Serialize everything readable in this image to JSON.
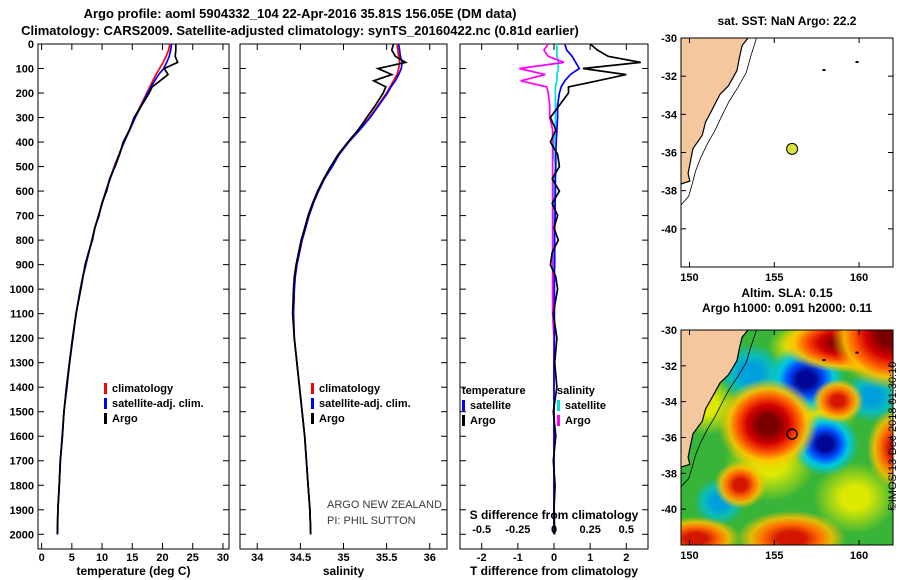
{
  "titles": {
    "line1": "Argo profile: aoml 5904332_104 22-Apr-2016 35.81S 156.05E (DM data)",
    "line2": "Climatology: CARS2009. Satellite-adjusted climatology: synTS_20160422.nc (0.81d earlier)"
  },
  "watermark": {
    "org": "ARGO NEW ZEALAND",
    "pi": "PI: PHIL SUTTON"
  },
  "copyright": "©IMOS 13-Dec-2018 01:30:10",
  "chart_data": {
    "type": "line",
    "depth_m": [
      0,
      25,
      50,
      75,
      100,
      125,
      150,
      175,
      200,
      250,
      300,
      350,
      400,
      450,
      500,
      550,
      600,
      650,
      700,
      750,
      800,
      850,
      900,
      950,
      1000,
      1100,
      1200,
      1300,
      1400,
      1500,
      1600,
      1700,
      1800,
      1900,
      2000
    ],
    "depth_axis": {
      "ticks": [
        0,
        100,
        200,
        300,
        400,
        500,
        600,
        700,
        800,
        900,
        1000,
        1100,
        1200,
        1300,
        1400,
        1500,
        1600,
        1700,
        1800,
        1900,
        2000
      ],
      "range": [
        0,
        2060
      ]
    },
    "temperature_panel": {
      "type": "line",
      "xlabel": "temperature (deg C)",
      "xticks": [
        0,
        5,
        10,
        15,
        20,
        25,
        30
      ],
      "xrange": [
        -0.6,
        31
      ],
      "series": [
        {
          "name": "climatology",
          "color": "#ff0000",
          "values": [
            21.2,
            21.0,
            20.6,
            20.1,
            19.5,
            18.9,
            18.4,
            17.9,
            17.4,
            16.4,
            15.4,
            14.5,
            13.6,
            12.8,
            12.0,
            11.3,
            10.6,
            10.0,
            9.4,
            8.8,
            8.3,
            7.8,
            7.3,
            6.8,
            6.4,
            5.7,
            5.1,
            4.6,
            4.1,
            3.7,
            3.4,
            3.1,
            2.9,
            2.7,
            2.6
          ]
        },
        {
          "name": "satellite-adj. clim.",
          "color": "#0000ff",
          "values": [
            21.5,
            21.35,
            21.1,
            20.7,
            20.2,
            19.35,
            18.7,
            18.1,
            17.55,
            16.5,
            15.5,
            14.58,
            13.66,
            12.85,
            12.05,
            11.34,
            10.64,
            10.03,
            9.43,
            8.82,
            8.32,
            7.82,
            7.32,
            6.81,
            6.41,
            5.71,
            5.11,
            4.6,
            4.1,
            3.7,
            3.4,
            3.1,
            2.9,
            2.7,
            2.6
          ]
        },
        {
          "name": "Argo",
          "color": "#000000",
          "values": [
            22.2,
            22.2,
            22.1,
            22.5,
            20.3,
            20.9,
            19.6,
            18.3,
            17.8,
            16.55,
            15.3,
            14.55,
            13.5,
            12.9,
            12.15,
            11.25,
            10.75,
            9.95,
            9.5,
            8.8,
            8.42,
            7.75,
            7.2,
            6.85,
            6.5,
            5.68,
            5.18,
            4.62,
            4.18,
            3.68,
            3.45,
            3.08,
            2.93,
            2.7,
            2.62
          ]
        }
      ]
    },
    "salinity_panel": {
      "type": "line",
      "xlabel": "salinity",
      "xticks": [
        34,
        34.5,
        35,
        35.5,
        36
      ],
      "xrange": [
        33.8,
        36.2
      ],
      "series": [
        {
          "name": "climatology",
          "color": "#ff0000",
          "values": [
            35.62,
            35.63,
            35.64,
            35.65,
            35.64,
            35.62,
            35.58,
            35.54,
            35.5,
            35.4,
            35.3,
            35.18,
            35.06,
            34.95,
            34.86,
            34.78,
            34.71,
            34.65,
            34.6,
            34.56,
            34.52,
            34.49,
            34.46,
            34.44,
            34.43,
            34.42,
            34.43,
            34.46,
            34.49,
            34.52,
            34.55,
            34.57,
            34.59,
            34.61,
            34.62
          ]
        },
        {
          "name": "satellite-adj. clim.",
          "color": "#0000ff",
          "values": [
            35.64,
            35.65,
            35.66,
            35.68,
            35.67,
            35.64,
            35.6,
            35.55,
            35.51,
            35.41,
            35.31,
            35.19,
            35.06,
            34.95,
            34.87,
            34.78,
            34.71,
            34.65,
            34.6,
            34.56,
            34.52,
            34.49,
            34.46,
            34.44,
            34.43,
            34.42,
            34.43,
            34.46,
            34.49,
            34.52,
            34.55,
            34.57,
            34.59,
            34.61,
            34.62
          ]
        },
        {
          "name": "Argo",
          "color": "#000000",
          "values": [
            35.58,
            35.56,
            35.6,
            35.72,
            35.4,
            35.56,
            35.35,
            35.49,
            35.46,
            35.37,
            35.27,
            35.17,
            35.05,
            34.94,
            34.85,
            34.77,
            34.7,
            34.64,
            34.59,
            34.55,
            34.51,
            34.48,
            34.45,
            34.43,
            34.42,
            34.41,
            34.43,
            34.46,
            34.49,
            34.52,
            34.55,
            34.57,
            34.59,
            34.61,
            34.62
          ]
        }
      ]
    },
    "difference_panel": {
      "type": "line",
      "xlabel": "T difference from climatology",
      "xticks": [
        -2,
        -1,
        0,
        1,
        2
      ],
      "xrange": [
        -2.6,
        2.6
      ],
      "s_axis": {
        "label": "S difference from climatology",
        "tick_labels": [
          "-0.5",
          "-0.25",
          "0",
          "0.25",
          "0.5"
        ],
        "tick_positions": [
          -2,
          -1,
          0,
          1,
          2
        ],
        "scale_note": "S differences plotted x4 on the T axis"
      },
      "legend": {
        "temperature_header": "temperature",
        "salinity_header": "salinity",
        "temperature": [
          {
            "name": "satellite",
            "color": "#0000ff"
          },
          {
            "name": "Argo",
            "color": "#000000"
          }
        ],
        "salinity": [
          {
            "name": "satellite",
            "color": "#00e0e0"
          },
          {
            "name": "Argo",
            "color": "#ff00ff"
          }
        ]
      },
      "series": [
        {
          "name": "salinity satellite diff x4",
          "color": "#00e0e0",
          "values": [
            0.08,
            0.08,
            0.08,
            0.12,
            0.12,
            0.08,
            0.08,
            0.04,
            0.04,
            0.04,
            0.04,
            0.04,
            0,
            0,
            0.04,
            0,
            0,
            0,
            0,
            0,
            0,
            0,
            0,
            0,
            0,
            0,
            0,
            0,
            0,
            0,
            0,
            0,
            0,
            0,
            0
          ]
        },
        {
          "name": "salinity Argo diff x4",
          "color": "#ff00ff",
          "values": [
            -0.16,
            -0.28,
            -0.16,
            0.28,
            -0.96,
            -0.24,
            -0.92,
            -0.2,
            -0.16,
            -0.12,
            -0.12,
            -0.04,
            -0.04,
            -0.04,
            -0.04,
            -0.04,
            -0.04,
            -0.04,
            -0.04,
            -0.04,
            -0.04,
            -0.04,
            -0.04,
            -0.04,
            -0.04,
            -0.04,
            0,
            0,
            0,
            0,
            0,
            0,
            0,
            0,
            0
          ]
        },
        {
          "name": "temperature satellite diff",
          "color": "#0000ff",
          "values": [
            0.3,
            0.35,
            0.5,
            0.6,
            0.7,
            0.45,
            0.3,
            0.2,
            0.15,
            0.1,
            0.1,
            0.08,
            0.06,
            0.05,
            0.05,
            0.04,
            0.04,
            0.03,
            0.03,
            0.02,
            0.02,
            0.02,
            0.02,
            0.01,
            0.01,
            0.01,
            0.01,
            0,
            0,
            0,
            0,
            0,
            0,
            0,
            0
          ]
        },
        {
          "name": "temperature Argo diff",
          "color": "#000000",
          "values": [
            1.0,
            1.2,
            1.5,
            2.4,
            0.8,
            2.0,
            1.2,
            0.4,
            0.4,
            0.15,
            -0.1,
            0.05,
            -0.1,
            0.1,
            0.15,
            -0.05,
            0.15,
            -0.05,
            0.1,
            0,
            0.12,
            -0.05,
            -0.1,
            0.05,
            0.1,
            -0.02,
            0.08,
            0.02,
            0.08,
            -0.02,
            0.05,
            -0.02,
            0.03,
            0,
            0.02
          ]
        }
      ]
    },
    "coast": {
      "land_color": "#f5c79e",
      "coastline": [
        [
          153.45,
          -30.0
        ],
        [
          153.1,
          -30.4
        ],
        [
          152.95,
          -31.0
        ],
        [
          152.8,
          -31.7
        ],
        [
          152.3,
          -32.5
        ],
        [
          151.8,
          -32.95
        ],
        [
          151.25,
          -33.9
        ],
        [
          150.95,
          -34.4
        ],
        [
          150.75,
          -35.1
        ],
        [
          150.2,
          -35.8
        ],
        [
          150.05,
          -36.5
        ],
        [
          149.92,
          -37.1
        ],
        [
          150.02,
          -37.5
        ],
        [
          149.5,
          -37.65
        ]
      ],
      "shelf_line": [
        [
          153.95,
          -30.0
        ],
        [
          153.6,
          -31.0
        ],
        [
          153.35,
          -31.8
        ],
        [
          152.85,
          -32.6
        ],
        [
          152.35,
          -33.3
        ],
        [
          151.9,
          -34.1
        ],
        [
          151.5,
          -34.85
        ],
        [
          151.05,
          -35.55
        ],
        [
          150.65,
          -36.3
        ],
        [
          150.35,
          -37.0
        ],
        [
          150.15,
          -37.7
        ],
        [
          149.95,
          -38.3
        ],
        [
          149.5,
          -38.75
        ]
      ],
      "islands": [
        [
          157.93,
          -31.68
        ],
        [
          159.88,
          -31.26
        ]
      ]
    },
    "float_marker_color": "#dce03c",
    "location_map": {
      "type": "map",
      "title": "sat. SST: NaN Argo: 22.2",
      "lon_range": [
        149.5,
        162
      ],
      "lat_range": [
        -30,
        -42
      ],
      "lon_ticks": [
        150,
        155,
        160
      ],
      "lat_ticks": [
        -30,
        -32,
        -34,
        -36,
        -38,
        -40
      ],
      "float": {
        "lon": 156.05,
        "lat": -35.81
      }
    },
    "sla_map": {
      "type": "heatmap",
      "title1": "Altim. SLA: 0.15",
      "title2": "Argo h1000: 0.091 h2000: 0.11",
      "lon_range": [
        149.5,
        162
      ],
      "lat_range": [
        -30,
        -42
      ],
      "lon_ticks": [
        150,
        155,
        160
      ],
      "lat_ticks": [
        -30,
        -32,
        -34,
        -36,
        -38,
        -40
      ],
      "float": {
        "lon": 156.05,
        "lat": -35.81
      },
      "base_color": "#38b438",
      "palette": {
        "warm-strong": "#7a0000 0%,#7a0000 20%,#d40000 42%,#ff5c00 62%,rgba(255,195,0,0.9) 78%,rgba(255,195,0,0) 100%",
        "warm": "#d41800 0%,#d41800 25%,#ff7000 52%,rgba(255,190,0,0.85) 74%,rgba(255,190,0,0) 100%",
        "cold-strong": "#000696 0%,#000696 22%,#0050ff 46%,#00c8e0 68%,rgba(0,200,224,0) 100%",
        "cold": "#00a0dc 0%,#00a0dc 30%,rgba(0,190,215,0.8) 60%,rgba(0,190,215,0) 100%",
        "yellow": "rgba(230,235,0,0.95) 0%,rgba(230,235,0,0.95) 32%,rgba(230,235,0,0) 100%"
      },
      "features": [
        {
          "at": [
            99,
            2
          ],
          "size": [
            60,
            55
          ],
          "kind": "warm-strong"
        },
        {
          "at": [
            79,
            6
          ],
          "size": [
            70,
            30
          ],
          "kind": "warm-strong"
        },
        {
          "at": [
            41,
            44
          ],
          "size": [
            50,
            46
          ],
          "kind": "warm-strong"
        },
        {
          "at": [
            28,
            72
          ],
          "size": [
            26,
            24
          ],
          "kind": "warm"
        },
        {
          "at": [
            52,
            97
          ],
          "size": [
            55,
            28
          ],
          "kind": "warm"
        },
        {
          "at": [
            7,
            97
          ],
          "size": [
            45,
            22
          ],
          "kind": "warm"
        },
        {
          "at": [
            101,
            55
          ],
          "size": [
            28,
            40
          ],
          "kind": "warm"
        },
        {
          "at": [
            74,
            33
          ],
          "size": [
            26,
            22
          ],
          "kind": "warm"
        },
        {
          "at": [
            59,
            23
          ],
          "size": [
            40,
            36
          ],
          "kind": "cold-strong"
        },
        {
          "at": [
            68,
            53
          ],
          "size": [
            34,
            32
          ],
          "kind": "cold-strong"
        },
        {
          "at": [
            33,
            20
          ],
          "size": [
            34,
            30
          ],
          "kind": "cold"
        },
        {
          "at": [
            18,
            80
          ],
          "size": [
            26,
            24
          ],
          "kind": "cold"
        },
        {
          "at": [
            90,
            31
          ],
          "size": [
            30,
            26
          ],
          "kind": "cold"
        },
        {
          "at": [
            64,
            36
          ],
          "size": [
            42,
            36
          ],
          "kind": "yellow"
        },
        {
          "at": [
            42,
            62
          ],
          "size": [
            46,
            38
          ],
          "kind": "yellow"
        },
        {
          "at": [
            82,
            78
          ],
          "size": [
            42,
            36
          ],
          "kind": "yellow"
        },
        {
          "at": [
            12,
            35
          ],
          "size": [
            34,
            30
          ],
          "kind": "yellow"
        },
        {
          "at": [
            55,
            8
          ],
          "size": [
            30,
            24
          ],
          "kind": "yellow"
        }
      ]
    }
  }
}
